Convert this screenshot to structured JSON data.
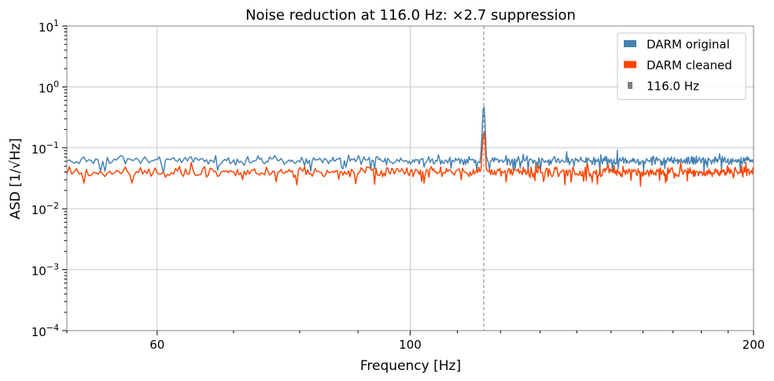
{
  "chart_data": {
    "type": "line",
    "title": "Noise reduction at 116.0 Hz: ×2.7 suppression",
    "xlabel": "Frequency [Hz]",
    "ylabel": "ASD [1/√Hz]",
    "x_scale": "log",
    "y_scale": "log",
    "xlim": [
      50,
      200
    ],
    "ylim": [
      0.0001,
      10
    ],
    "x_ticks": [
      60,
      100,
      200
    ],
    "x_tick_labels": [
      "60",
      "100",
      "200"
    ],
    "y_ticks": [
      0.0001,
      0.001,
      0.01,
      0.1,
      1,
      10
    ],
    "y_tick_labels": [
      {
        "base": "10",
        "exp": "−4"
      },
      {
        "base": "10",
        "exp": "−3"
      },
      {
        "base": "10",
        "exp": "−2"
      },
      {
        "base": "10",
        "exp": "−1"
      },
      {
        "base": "10",
        "exp": "0"
      },
      {
        "base": "10",
        "exp": "1"
      }
    ],
    "grid": true,
    "legend_position": "top-right",
    "line_marker": {
      "x": 116.0,
      "label": "116.0 Hz",
      "color": "#808080",
      "style": "dashed"
    },
    "series": [
      {
        "name": "DARM original",
        "color": "#4682b4",
        "baseline": 0.062,
        "spread": 0.12,
        "peak": 0.68
      },
      {
        "name": "DARM cleaned",
        "color": "#ff4500",
        "baseline": 0.04,
        "spread": 0.14,
        "peak": 0.25
      }
    ],
    "peak_frequency": 116.0,
    "suppression_factor": "×2.7",
    "sample_count": 600
  }
}
